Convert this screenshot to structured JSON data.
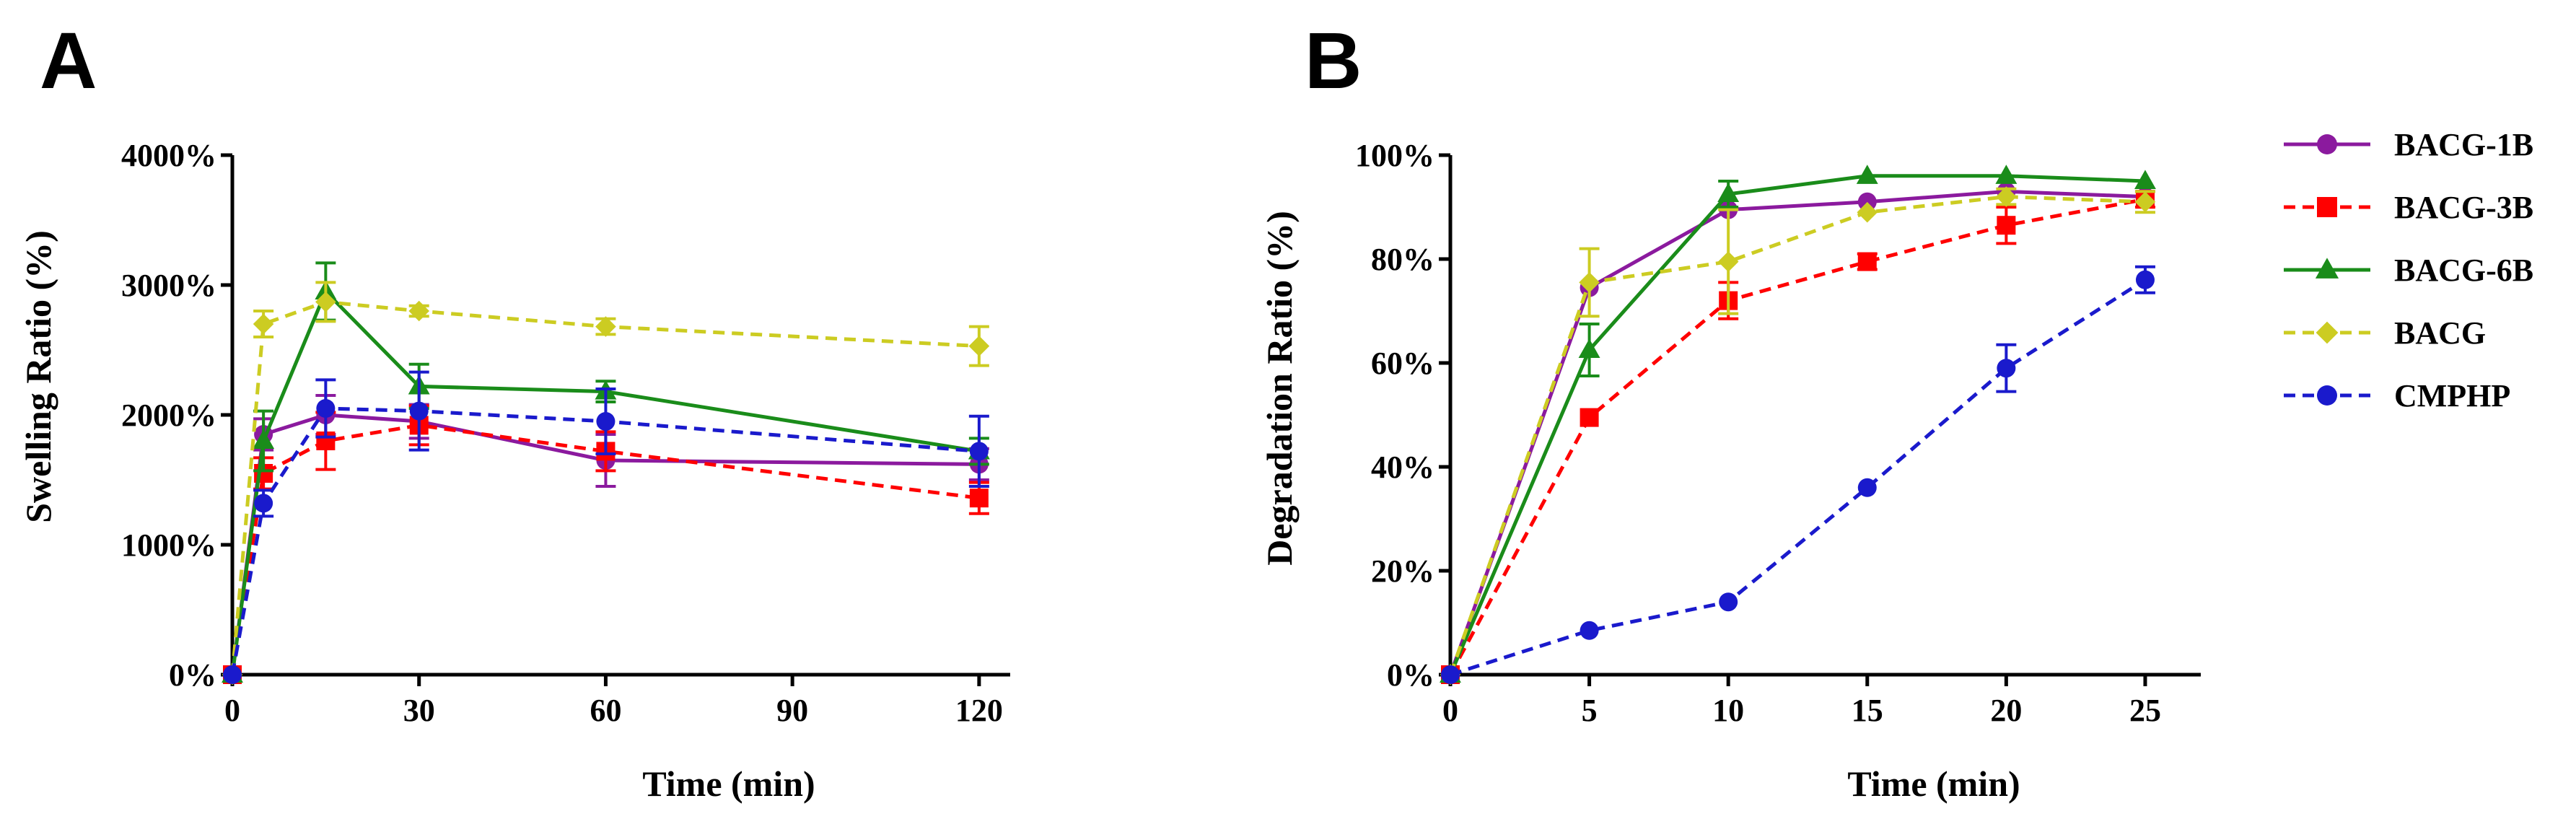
{
  "panels": [
    {
      "letter": "A",
      "xlabel": "Time (min)",
      "ylabel": "Swelling Ratio (%)"
    },
    {
      "letter": "B",
      "xlabel": "Time (min)",
      "ylabel": "Degradation Ratio (%)"
    }
  ],
  "legend": {
    "placement": "right",
    "items": [
      {
        "name": "BACG-1B",
        "color": "#8B1A9E",
        "marker": "circle",
        "dash": "solid"
      },
      {
        "name": "BACG-3B",
        "color": "#FF0000",
        "marker": "square",
        "dash": "dashed"
      },
      {
        "name": "BACG-6B",
        "color": "#1A8C1A",
        "marker": "triangle",
        "dash": "solid"
      },
      {
        "name": "BACG",
        "color": "#CCCC22",
        "marker": "diamond",
        "dash": "dashed"
      },
      {
        "name": "CMPHP",
        "color": "#1A1ACC",
        "marker": "circle",
        "dash": "dashed"
      }
    ]
  },
  "chart_data": [
    {
      "type": "line",
      "title": "",
      "xlabel": "Time (min)",
      "ylabel": "Swelling Ratio (%)",
      "xlim": [
        0,
        125
      ],
      "ylim": [
        0,
        4000
      ],
      "xticks": [
        0,
        30,
        60,
        90,
        120
      ],
      "yticks": [
        0,
        1000,
        2000,
        3000,
        4000
      ],
      "ytick_labels": [
        "0%",
        "1000%",
        "2000%",
        "3000%",
        "4000%"
      ],
      "grid": false,
      "series": [
        {
          "name": "BACG-1B",
          "x": [
            0,
            5,
            15,
            30,
            60,
            120
          ],
          "y": [
            0,
            1850,
            2000,
            1950,
            1650,
            1620
          ],
          "err": [
            0,
            120,
            150,
            130,
            200,
            120
          ]
        },
        {
          "name": "BACG-3B",
          "x": [
            0,
            5,
            15,
            30,
            60,
            120
          ],
          "y": [
            0,
            1550,
            1800,
            1920,
            1720,
            1360
          ],
          "err": [
            0,
            120,
            220,
            150,
            150,
            120
          ]
        },
        {
          "name": "BACG-6B",
          "x": [
            0,
            5,
            15,
            30,
            60,
            120
          ],
          "y": [
            0,
            1800,
            2950,
            2220,
            2180,
            1720
          ],
          "err": [
            0,
            230,
            220,
            170,
            80,
            100
          ]
        },
        {
          "name": "BACG",
          "x": [
            0,
            5,
            15,
            30,
            60,
            120
          ],
          "y": [
            0,
            2700,
            2870,
            2800,
            2680,
            2530
          ],
          "err": [
            0,
            100,
            150,
            40,
            60,
            150
          ]
        },
        {
          "name": "CMPHP",
          "x": [
            0,
            5,
            15,
            30,
            60,
            120
          ],
          "y": [
            0,
            1320,
            2050,
            2030,
            1950,
            1720
          ],
          "err": [
            0,
            100,
            220,
            300,
            250,
            270
          ]
        }
      ]
    },
    {
      "type": "line",
      "title": "",
      "xlabel": "Time (min)",
      "ylabel": "Degradation Ratio (%)",
      "xlim": [
        0,
        27
      ],
      "ylim": [
        0,
        100
      ],
      "xticks": [
        0,
        5,
        10,
        15,
        20,
        25
      ],
      "yticks": [
        0,
        20,
        40,
        60,
        80,
        100
      ],
      "ytick_labels": [
        "0%",
        "20%",
        "40%",
        "60%",
        "80%",
        "100%"
      ],
      "grid": false,
      "series": [
        {
          "name": "BACG-1B",
          "x": [
            0,
            5,
            10,
            15,
            20,
            25
          ],
          "y": [
            0,
            74.5,
            89.5,
            91,
            93,
            92
          ],
          "err": [
            0,
            0,
            0,
            0,
            0,
            0
          ]
        },
        {
          "name": "BACG-3B",
          "x": [
            0,
            5,
            10,
            15,
            20,
            25
          ],
          "y": [
            0,
            49.5,
            72,
            79.5,
            86.5,
            91.5
          ],
          "err": [
            0,
            0,
            3.5,
            1.5,
            3.5,
            1.5
          ]
        },
        {
          "name": "BACG-6B",
          "x": [
            0,
            5,
            10,
            15,
            20,
            25
          ],
          "y": [
            0,
            62.5,
            92.5,
            96,
            96,
            95
          ],
          "err": [
            0,
            5,
            2.5,
            0,
            0,
            0
          ]
        },
        {
          "name": "BACG",
          "x": [
            0,
            5,
            10,
            15,
            20,
            25
          ],
          "y": [
            0,
            75.5,
            79.5,
            89,
            92,
            91
          ],
          "err": [
            0,
            6.5,
            10,
            0,
            1.5,
            2
          ]
        },
        {
          "name": "CMPHP",
          "x": [
            0,
            5,
            10,
            15,
            20,
            25
          ],
          "y": [
            0,
            8.5,
            14,
            36,
            59,
            76
          ],
          "err": [
            0,
            0,
            0,
            0,
            4.5,
            2.5
          ]
        }
      ]
    }
  ]
}
